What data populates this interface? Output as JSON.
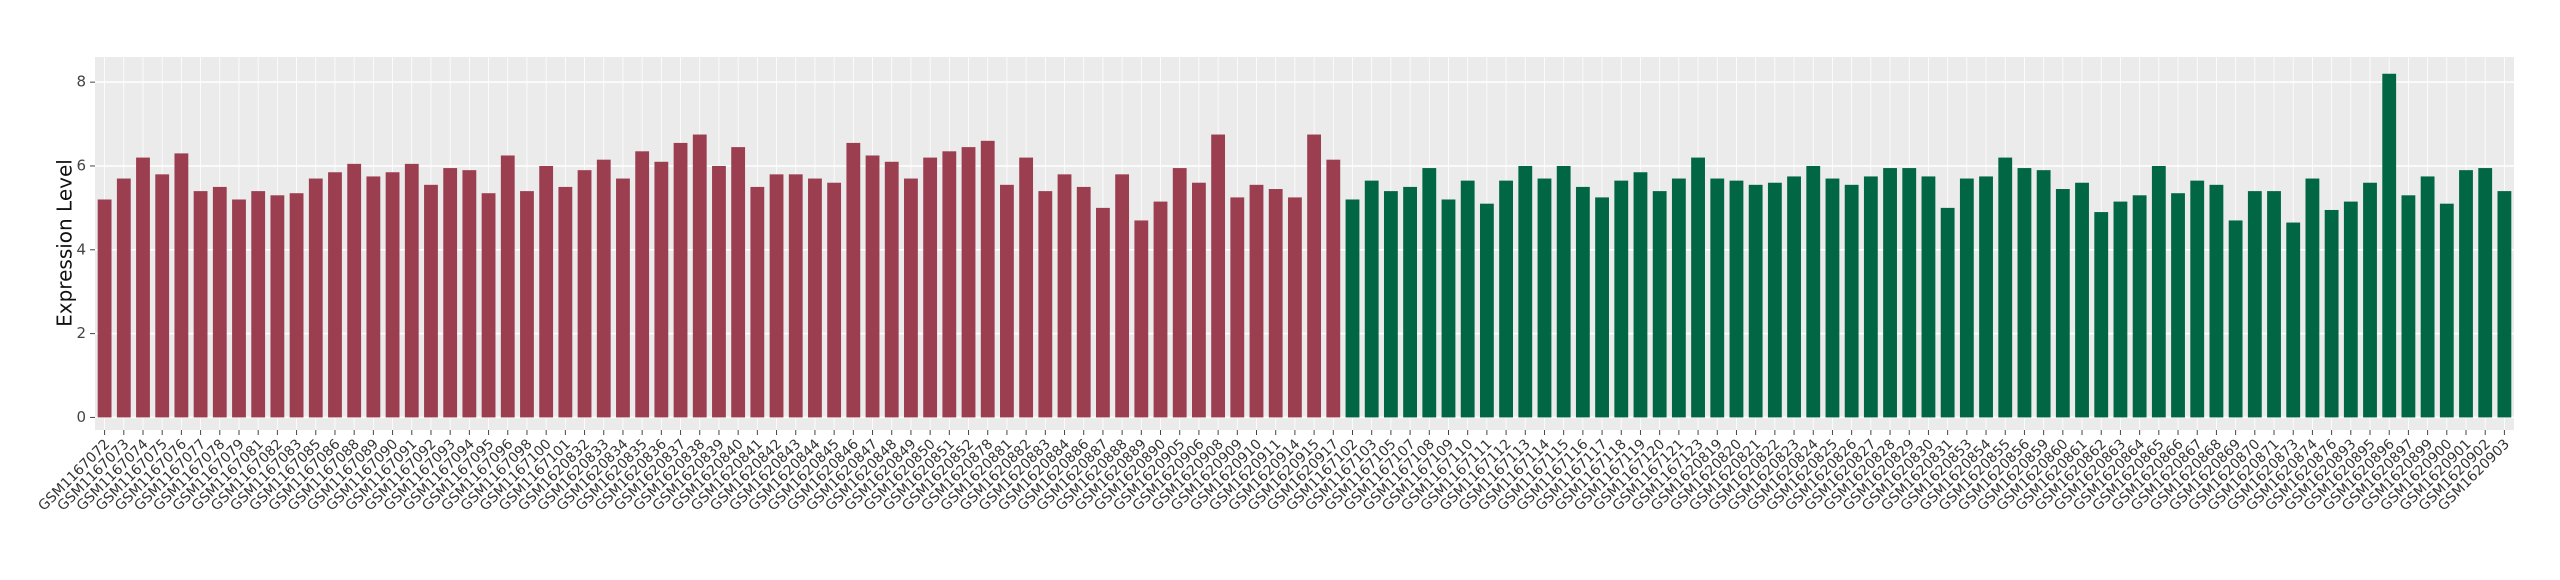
{
  "chart_data": {
    "type": "bar",
    "ylabel": "Expression Level",
    "ylim": [
      -0.3,
      8.6
    ],
    "yticks": [
      0,
      2,
      4,
      6,
      8
    ],
    "grid": true,
    "groups": [
      {
        "color": "#9b3f50",
        "categories": [
          "GSM1167072",
          "GSM1167073",
          "GSM1167074",
          "GSM1167075",
          "GSM1167076",
          "GSM1167077",
          "GSM1167078",
          "GSM1167079",
          "GSM1167081",
          "GSM1167082",
          "GSM1167083",
          "GSM1167085",
          "GSM1167086",
          "GSM1167088",
          "GSM1167089",
          "GSM1167090",
          "GSM1167091",
          "GSM1167092",
          "GSM1167093",
          "GSM1167094",
          "GSM1167095",
          "GSM1167096",
          "GSM1167098",
          "GSM1167100",
          "GSM1167101",
          "GSM1620832",
          "GSM1620833",
          "GSM1620834",
          "GSM1620835",
          "GSM1620836",
          "GSM1620837",
          "GSM1620838",
          "GSM1620839",
          "GSM1620840",
          "GSM1620841",
          "GSM1620842",
          "GSM1620843",
          "GSM1620844",
          "GSM1620845",
          "GSM1620846",
          "GSM1620847",
          "GSM1620848",
          "GSM1620849",
          "GSM1620850",
          "GSM1620851",
          "GSM1620852",
          "GSM1620878",
          "GSM1620881",
          "GSM1620882",
          "GSM1620883",
          "GSM1620884",
          "GSM1620886",
          "GSM1620887",
          "GSM1620888",
          "GSM1620889",
          "GSM1620890",
          "GSM1620905",
          "GSM1620906",
          "GSM1620908",
          "GSM1620909",
          "GSM1620910",
          "GSM1620911",
          "GSM1620914",
          "GSM1620915",
          "GSM1620917"
        ],
        "values": [
          5.2,
          5.7,
          6.2,
          5.8,
          6.3,
          5.4,
          5.5,
          5.2,
          5.4,
          5.3,
          5.35,
          5.7,
          5.85,
          6.05,
          5.75,
          5.85,
          6.05,
          5.55,
          5.95,
          5.9,
          5.35,
          6.25,
          5.4,
          6.0,
          5.5,
          5.9,
          6.15,
          5.7,
          6.35,
          6.1,
          6.55,
          6.75,
          6.0,
          6.45,
          5.5,
          5.8,
          5.8,
          5.7,
          5.6,
          6.55,
          6.25,
          6.1,
          5.7,
          6.2,
          6.35,
          6.45,
          6.6,
          5.55,
          6.2,
          5.4,
          5.8,
          5.5,
          5.0,
          5.8,
          4.7,
          5.15,
          5.95,
          5.6,
          6.75,
          5.25,
          5.55,
          5.45,
          5.25,
          6.75,
          6.15
        ]
      },
      {
        "color": "#006644",
        "categories": [
          "GSM1167102",
          "GSM1167103",
          "GSM1167105",
          "GSM1167107",
          "GSM1167108",
          "GSM1167109",
          "GSM1167110",
          "GSM1167111",
          "GSM1167112",
          "GSM1167113",
          "GSM1167114",
          "GSM1167115",
          "GSM1167116",
          "GSM1167117",
          "GSM1167118",
          "GSM1167119",
          "GSM1167120",
          "GSM1167121",
          "GSM1167123",
          "GSM1620819",
          "GSM1620820",
          "GSM1620821",
          "GSM1620822",
          "GSM1620823",
          "GSM1620824",
          "GSM1620825",
          "GSM1620826",
          "GSM1620827",
          "GSM1620828",
          "GSM1620829",
          "GSM1620830",
          "GSM1620831",
          "GSM1620853",
          "GSM1620854",
          "GSM1620855",
          "GSM1620856",
          "GSM1620859",
          "GSM1620860",
          "GSM1620861",
          "GSM1620862",
          "GSM1620863",
          "GSM1620864",
          "GSM1620865",
          "GSM1620866",
          "GSM1620867",
          "GSM1620868",
          "GSM1620869",
          "GSM1620870",
          "GSM1620871",
          "GSM1620873",
          "GSM1620874",
          "GSM1620876",
          "GSM1620893",
          "GSM1620895",
          "GSM1620896",
          "GSM1620897",
          "GSM1620899",
          "GSM1620900",
          "GSM1620901",
          "GSM1620902",
          "GSM1620903"
        ],
        "values": [
          5.2,
          5.65,
          5.4,
          5.5,
          5.95,
          5.2,
          5.65,
          5.1,
          5.65,
          6.0,
          5.7,
          6.0,
          5.5,
          5.25,
          5.65,
          5.85,
          5.4,
          5.7,
          6.2,
          5.7,
          5.65,
          5.55,
          5.6,
          5.75,
          6.0,
          5.7,
          5.55,
          5.75,
          5.95,
          5.95,
          5.75,
          5.0,
          5.7,
          5.75,
          6.2,
          5.95,
          5.9,
          5.45,
          5.6,
          4.9,
          5.15,
          5.3,
          6.0,
          5.35,
          5.65,
          5.55,
          4.7,
          5.4,
          5.4,
          4.65,
          5.7,
          4.95,
          5.15,
          5.6,
          8.2,
          5.3,
          5.75,
          5.1,
          5.9,
          5.95,
          5.4
        ]
      }
    ]
  }
}
